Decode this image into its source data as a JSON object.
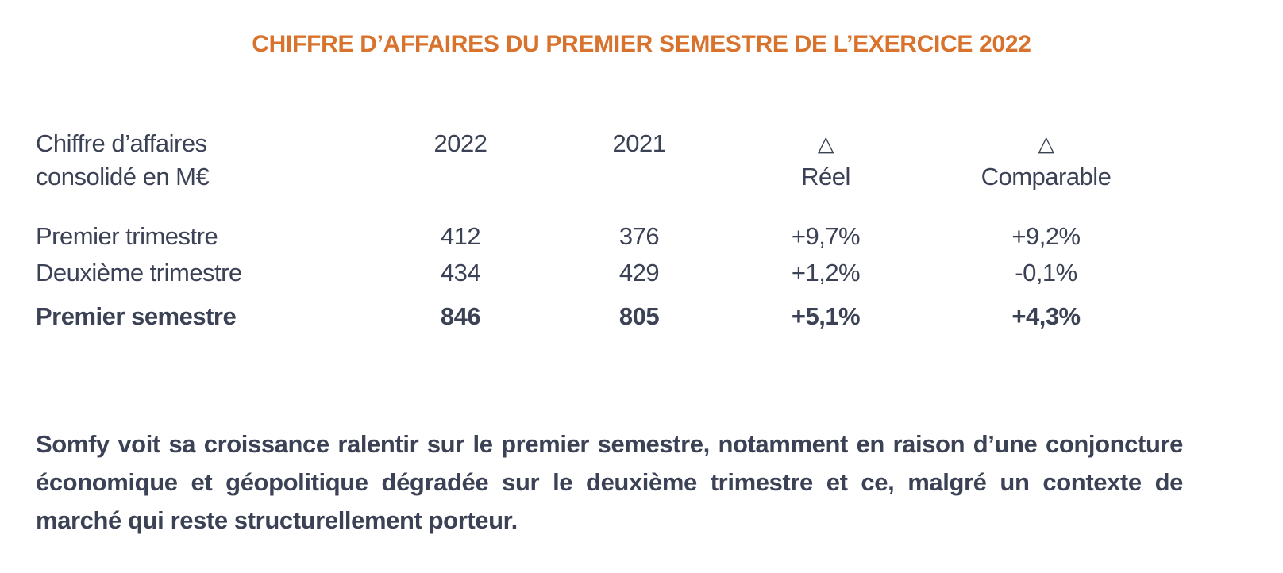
{
  "title": "CHIFFRE D’AFFAIRES DU PREMIER SEMESTRE DE L’EXERCICE 2022",
  "table": {
    "header": {
      "row_label_line1": "Chiffre d’affaires",
      "row_label_line2": "consolidé en M€",
      "col_2022": "2022",
      "col_2021": "2021",
      "delta_symbol": "△",
      "delta_reel_label": "Réel",
      "delta_comparable_label": "Comparable"
    },
    "columns": [
      "label",
      "y2022",
      "y2021",
      "delta_reel",
      "delta_comparable"
    ],
    "rows": [
      {
        "label": "Premier trimestre",
        "y2022": "412",
        "y2021": "376",
        "delta_reel": "+9,7%",
        "delta_comparable": "+9,2%",
        "bold": false
      },
      {
        "label": "Deuxième trimestre",
        "y2022": "434",
        "y2021": "429",
        "delta_reel": "+1,2%",
        "delta_comparable": "-0,1%",
        "bold": false
      },
      {
        "label": "Premier semestre",
        "y2022": "846",
        "y2021": "805",
        "delta_reel": "+5,1%",
        "delta_comparable": "+4,3%",
        "bold": true
      }
    ]
  },
  "commentary": "Somfy voit sa croissance ralentir sur le premier semestre, notamment en raison d’une con­joncture économique et géopolitique dégradée sur le deuxième trimestre et ce, malgré un contexte de marché qui reste structurellement porteur.",
  "colors": {
    "accent_orange": "#D8722C",
    "text_navy": "#3C4255"
  }
}
